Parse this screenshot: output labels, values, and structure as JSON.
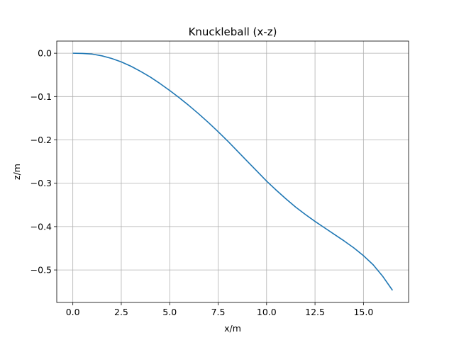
{
  "chart_data": {
    "type": "line",
    "title": "Knuckleball (x-z)",
    "xlabel": "x/m",
    "ylabel": "z/m",
    "xlim": [
      -0.83,
      17.33
    ],
    "ylim": [
      -0.575,
      0.028
    ],
    "grid": true,
    "x_ticks": [
      0.0,
      2.5,
      5.0,
      7.5,
      10.0,
      12.5,
      15.0
    ],
    "x_tick_labels": [
      "0.0",
      "2.5",
      "5.0",
      "7.5",
      "10.0",
      "12.5",
      "15.0"
    ],
    "y_ticks": [
      0.0,
      -0.1,
      -0.2,
      -0.3,
      -0.4,
      -0.5
    ],
    "y_tick_labels": [
      "0.0",
      "−0.1",
      "−0.2",
      "−0.3",
      "−0.4",
      "−0.5"
    ],
    "series": [
      {
        "color": "#1f77b4",
        "x": [
          0.0,
          0.5,
          1.0,
          1.5,
          2.0,
          2.5,
          3.0,
          3.5,
          4.0,
          4.5,
          5.0,
          5.5,
          6.0,
          6.5,
          7.0,
          7.5,
          8.0,
          8.5,
          9.0,
          9.5,
          10.0,
          10.5,
          11.0,
          11.5,
          12.0,
          12.5,
          13.0,
          13.5,
          14.0,
          14.5,
          15.0,
          15.5,
          16.0,
          16.5
        ],
        "y": [
          0.0,
          -0.0005,
          -0.002,
          -0.006,
          -0.012,
          -0.02,
          -0.03,
          -0.042,
          -0.055,
          -0.07,
          -0.086,
          -0.103,
          -0.121,
          -0.14,
          -0.16,
          -0.181,
          -0.203,
          -0.226,
          -0.249,
          -0.272,
          -0.295,
          -0.316,
          -0.336,
          -0.355,
          -0.372,
          -0.388,
          -0.403,
          -0.418,
          -0.433,
          -0.449,
          -0.467,
          -0.488,
          -0.515,
          -0.547
        ]
      }
    ]
  }
}
